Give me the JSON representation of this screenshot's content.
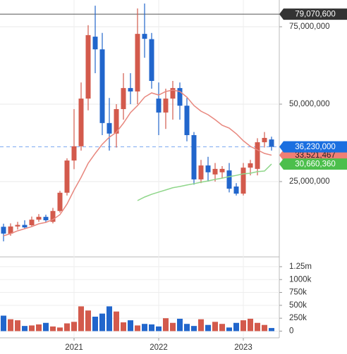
{
  "chart_data": {
    "type": "candlestick",
    "categories": [
      null,
      null,
      null,
      null,
      null,
      null,
      null,
      null,
      null,
      null,
      "2021",
      null,
      null,
      null,
      null,
      null,
      null,
      null,
      null,
      null,
      null,
      null,
      "2022",
      null,
      null,
      null,
      null,
      null,
      null,
      null,
      null,
      null,
      null,
      null,
      "2023",
      null,
      null,
      null,
      null
    ],
    "open": [
      10400000,
      8200000,
      10500000,
      11000000,
      10900000,
      12700000,
      13600000,
      12000000,
      15500000,
      21400000,
      31800000,
      36400000,
      51800000,
      71800000,
      67700000,
      43900000,
      40500000,
      48400000,
      55200000,
      54100000,
      72700000,
      71000000,
      51800000,
      47300000,
      51800000,
      55200000,
      49500000,
      40000000,
      25700000,
      30200000,
      27300000,
      28000000,
      28600000,
      23400000,
      21100000,
      29500000,
      29100000,
      37700000,
      38600000
    ],
    "high": [
      11400000,
      11500000,
      12000000,
      12500000,
      13700000,
      14500000,
      14300000,
      16500000,
      22000000,
      32500000,
      48400000,
      57000000,
      75500000,
      81800000,
      73000000,
      52000000,
      50000000,
      60000000,
      60000000,
      80900000,
      82500000,
      73000000,
      57000000,
      55000000,
      57500000,
      57000000,
      52000000,
      41000000,
      32000000,
      33000000,
      31000000,
      30000000,
      31000000,
      24500000,
      31000000,
      32000000,
      39000000,
      41000000,
      39500000
    ],
    "low": [
      5700000,
      7500000,
      9500000,
      9800000,
      10500000,
      12000000,
      11800000,
      11500000,
      15000000,
      20500000,
      29000000,
      35000000,
      48000000,
      60000000,
      40000000,
      35000000,
      36000000,
      45000000,
      50000000,
      50000000,
      65000000,
      55000000,
      40000000,
      42000000,
      45000000,
      45000000,
      38000000,
      24000000,
      24500000,
      25000000,
      25000000,
      26000000,
      21500000,
      20500000,
      20500000,
      27000000,
      27000000,
      36000000,
      35000000
    ],
    "close": [
      8200000,
      10500000,
      11000000,
      10200000,
      12700000,
      13600000,
      12500000,
      15500000,
      21400000,
      31800000,
      36400000,
      51800000,
      72300000,
      67700000,
      43900000,
      40500000,
      48400000,
      55200000,
      54100000,
      72700000,
      71100000,
      57500000,
      47300000,
      51800000,
      55200000,
      49500000,
      40000000,
      25700000,
      30200000,
      28000000,
      29100000,
      29100000,
      22700000,
      21100000,
      29500000,
      30900000,
      37700000,
      39100000,
      36230000
    ],
    "volume": [
      300000,
      230000,
      210000,
      100000,
      110000,
      130000,
      160000,
      90000,
      70000,
      150000,
      180000,
      480000,
      400000,
      280000,
      340000,
      480000,
      380000,
      170000,
      210000,
      110000,
      140000,
      130000,
      90000,
      250000,
      160000,
      240000,
      140000,
      100000,
      230000,
      120000,
      180000,
      140000,
      70000,
      160000,
      210000,
      240000,
      160000,
      120000,
      60000
    ],
    "up_color": "#d35a4c",
    "down_color": "#2166cc",
    "series": [
      {
        "color": "#e8877e",
        "values": [
          7500000,
          8180000,
          9090000,
          9770000,
          10450000,
          11360000,
          11820000,
          12730000,
          14320000,
          17730000,
          22270000,
          26360000,
          30910000,
          34090000,
          37050000,
          39320000,
          40910000,
          43860000,
          47270000,
          49550000,
          52270000,
          53640000,
          52950000,
          54090000,
          54550000,
          54090000,
          52270000,
          49550000,
          47730000,
          46590000,
          45000000,
          43180000,
          42270000,
          40450000,
          38180000,
          36360000,
          35230000,
          34090000,
          33521467
        ]
      },
      {
        "color": "#8fd68a",
        "values": [
          null,
          null,
          null,
          null,
          null,
          null,
          null,
          null,
          null,
          null,
          null,
          null,
          null,
          null,
          null,
          null,
          null,
          null,
          null,
          18860000,
          20000000,
          20900000,
          21600000,
          22300000,
          23000000,
          23400000,
          23900000,
          24300000,
          24800000,
          25200000,
          25700000,
          26100000,
          26600000,
          27000000,
          27500000,
          27700000,
          28200000,
          28400000,
          30660360
        ]
      }
    ],
    "ylim": [
      1360000,
      83640000
    ],
    "yticks": [
      {
        "value": 25000000,
        "label": "25,000,000"
      },
      {
        "value": 50000000,
        "label": "50,000,000"
      },
      {
        "value": 75000000,
        "label": "75,000,000"
      }
    ],
    "volume_ylim": [
      -130000,
      1440000
    ],
    "volume_yticks": [
      0,
      {
        "value": 250000,
        "label": "250k"
      },
      {
        "value": 500000,
        "label": "500k"
      },
      {
        "value": 750000,
        "label": "750k"
      },
      {
        "value": 1000000,
        "label": "1000k"
      },
      {
        "value": 1250000,
        "label": "1.25m"
      }
    ],
    "price_markers": [
      {
        "value": 79070600,
        "label": "79,070,600",
        "color": "#333333"
      },
      {
        "value": 33521467,
        "label": "33,521,467",
        "color": "#f07f74"
      },
      {
        "value": 30660360,
        "label": "30,660,360",
        "color": "#4cbf4c"
      },
      {
        "value": 36230000,
        "label": "36,230,000",
        "color": "#1a6fe0"
      }
    ],
    "grid": true
  }
}
